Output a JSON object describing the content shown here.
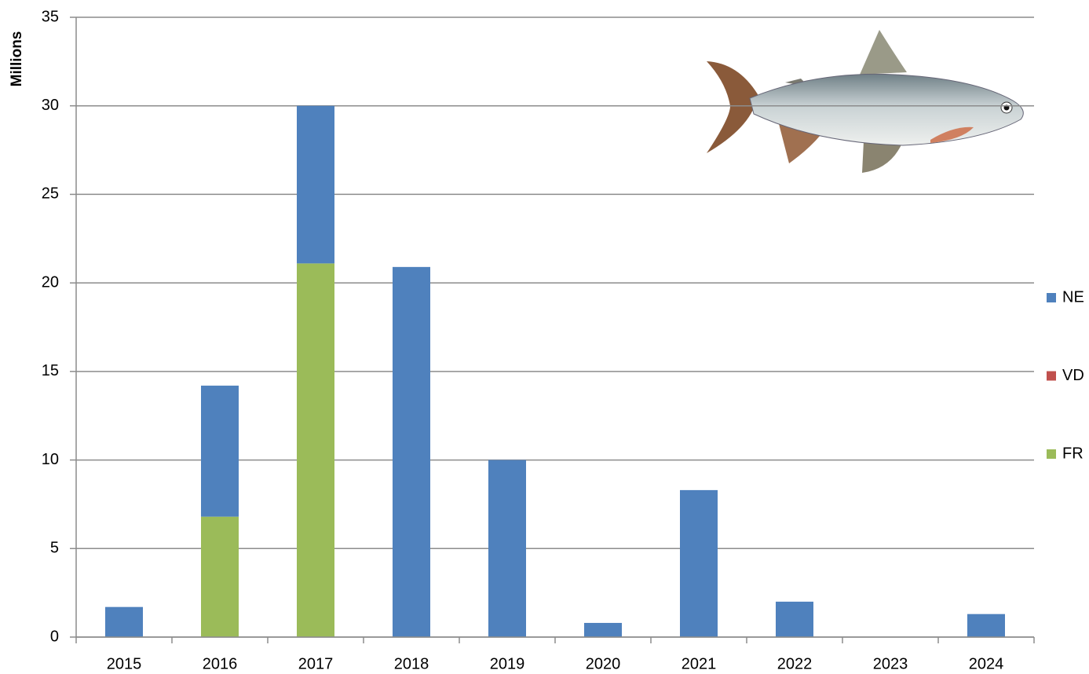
{
  "chart_data": {
    "type": "stacked_bar",
    "y_label": "Millions",
    "categories": [
      "2015",
      "2016",
      "2017",
      "2018",
      "2019",
      "2020",
      "2021",
      "2022",
      "2023",
      "2024"
    ],
    "series": [
      {
        "name": "FR",
        "color": "#9bbb59",
        "values": [
          0,
          6.8,
          21.1,
          0,
          0,
          0,
          0,
          0,
          0,
          0
        ]
      },
      {
        "name": "VD",
        "color": "#c0504d",
        "values": [
          0,
          0,
          0,
          0,
          0,
          0,
          0,
          0,
          0,
          0
        ]
      },
      {
        "name": "NE",
        "color": "#4f81bd",
        "values": [
          1.7,
          7.4,
          8.9,
          20.9,
          10.0,
          0.8,
          8.3,
          2.0,
          0,
          1.3
        ]
      }
    ],
    "ylim": [
      0,
      35
    ],
    "yticks": [
      0,
      5,
      10,
      15,
      20,
      25,
      30,
      35
    ],
    "grid": true,
    "legend": "right"
  }
}
